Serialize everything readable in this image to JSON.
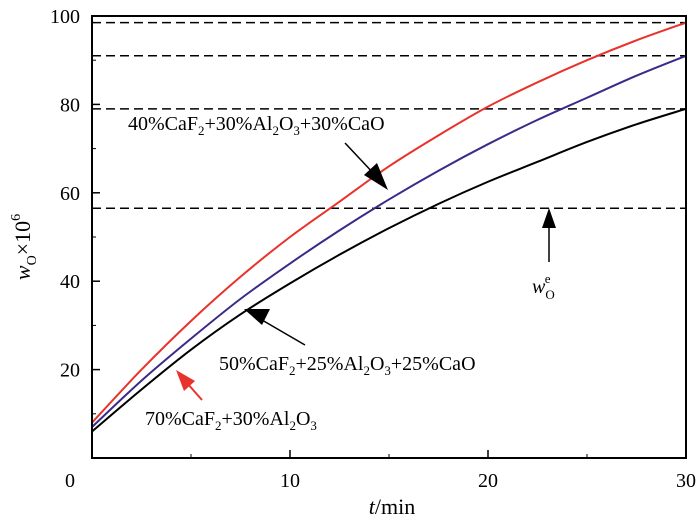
{
  "chart_data": {
    "type": "line",
    "xlabel": "t/min",
    "ylabel": "wO×10^6",
    "xlim": [
      0,
      30
    ],
    "ylim": [
      0,
      100
    ],
    "x_ticks": [
      0,
      10,
      20,
      30
    ],
    "y_ticks": [
      20,
      40,
      60,
      80,
      100
    ],
    "grid": false,
    "series": [
      {
        "name": "70%CaF2+30%Al2O3",
        "color": "#e8322a",
        "x": [
          0,
          2.5,
          5,
          7.5,
          10,
          12.5,
          15,
          17.5,
          20,
          22.5,
          25,
          27.5,
          30
        ],
        "values": [
          8,
          20,
          31,
          41,
          50,
          58,
          66,
          73,
          79.5,
          85,
          90,
          94.5,
          98.5
        ]
      },
      {
        "name": "50%CaF2+25%Al2O3+25%CaO",
        "color": "#3a2a8a",
        "x": [
          0,
          2.5,
          5,
          7.5,
          10,
          12.5,
          15,
          17.5,
          20,
          22.5,
          25,
          27.5,
          30
        ],
        "values": [
          7,
          17.5,
          27,
          36,
          44,
          51.5,
          58.5,
          65,
          71,
          76.5,
          81.5,
          86.5,
          91
        ]
      },
      {
        "name": "40%CaF2+30%Al2O3+30%CaO",
        "color": "#000000",
        "x": [
          0,
          2.5,
          5,
          7.5,
          10,
          12.5,
          15,
          17.5,
          20,
          22.5,
          25,
          27.5,
          30
        ],
        "values": [
          6,
          15.5,
          24.5,
          32.5,
          39.5,
          46,
          52,
          57.5,
          62.5,
          67,
          71.5,
          75.5,
          79
        ]
      }
    ],
    "reference_lines": [
      {
        "y": 98.5,
        "style": "dashed"
      },
      {
        "y": 91,
        "style": "dashed"
      },
      {
        "y": 79,
        "style": "dashed"
      },
      {
        "y": 56.5,
        "style": "dashed"
      }
    ],
    "annotations": {
      "label_top": {
        "parts": [
          "40%CaF",
          "2",
          "+30%Al",
          "2",
          "O",
          "3",
          "+30%CaO"
        ]
      },
      "label_mid": {
        "parts": [
          "50%CaF",
          "2",
          "+25%Al",
          "2",
          "O",
          "3",
          "+25%CaO"
        ]
      },
      "label_bottom": {
        "parts": [
          "70%CaF",
          "2",
          "+30%Al",
          "2",
          "O",
          "3"
        ]
      },
      "eq_label": {
        "base": "w",
        "sub": "O",
        "sup": "e"
      }
    }
  }
}
